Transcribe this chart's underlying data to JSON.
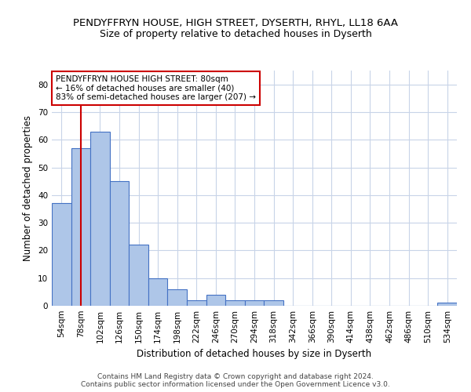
{
  "title": "PENDYFFRYN HOUSE, HIGH STREET, DYSERTH, RHYL, LL18 6AA",
  "subtitle": "Size of property relative to detached houses in Dyserth",
  "xlabel": "Distribution of detached houses by size in Dyserth",
  "ylabel": "Number of detached properties",
  "bar_labels": [
    "54sqm",
    "78sqm",
    "102sqm",
    "126sqm",
    "150sqm",
    "174sqm",
    "198sqm",
    "222sqm",
    "246sqm",
    "270sqm",
    "294sqm",
    "318sqm",
    "342sqm",
    "366sqm",
    "390sqm",
    "414sqm",
    "438sqm",
    "462sqm",
    "486sqm",
    "510sqm",
    "534sqm"
  ],
  "bar_values": [
    37,
    57,
    63,
    45,
    22,
    10,
    6,
    2,
    4,
    2,
    2,
    2,
    0,
    0,
    0,
    0,
    0,
    0,
    0,
    0,
    1
  ],
  "bar_color": "#aec6e8",
  "bar_edge_color": "#4472c4",
  "vline_x_index": 1,
  "marker_label_lines": [
    "PENDYFFRYN HOUSE HIGH STREET: 80sqm",
    "← 16% of detached houses are smaller (40)",
    "83% of semi-detached houses are larger (207) →"
  ],
  "vline_color": "#cc0000",
  "annotation_box_edge_color": "#cc0000",
  "ylim": [
    0,
    85
  ],
  "yticks": [
    0,
    10,
    20,
    30,
    40,
    50,
    60,
    70,
    80
  ],
  "footer_line1": "Contains HM Land Registry data © Crown copyright and database right 2024.",
  "footer_line2": "Contains public sector information licensed under the Open Government Licence v3.0.",
  "bg_color": "#ffffff",
  "grid_color": "#c8d4e8",
  "title_fontsize": 9.5,
  "subtitle_fontsize": 9,
  "axis_label_fontsize": 8.5,
  "tick_fontsize": 7.5,
  "annotation_fontsize": 7.5,
  "footer_fontsize": 6.5
}
